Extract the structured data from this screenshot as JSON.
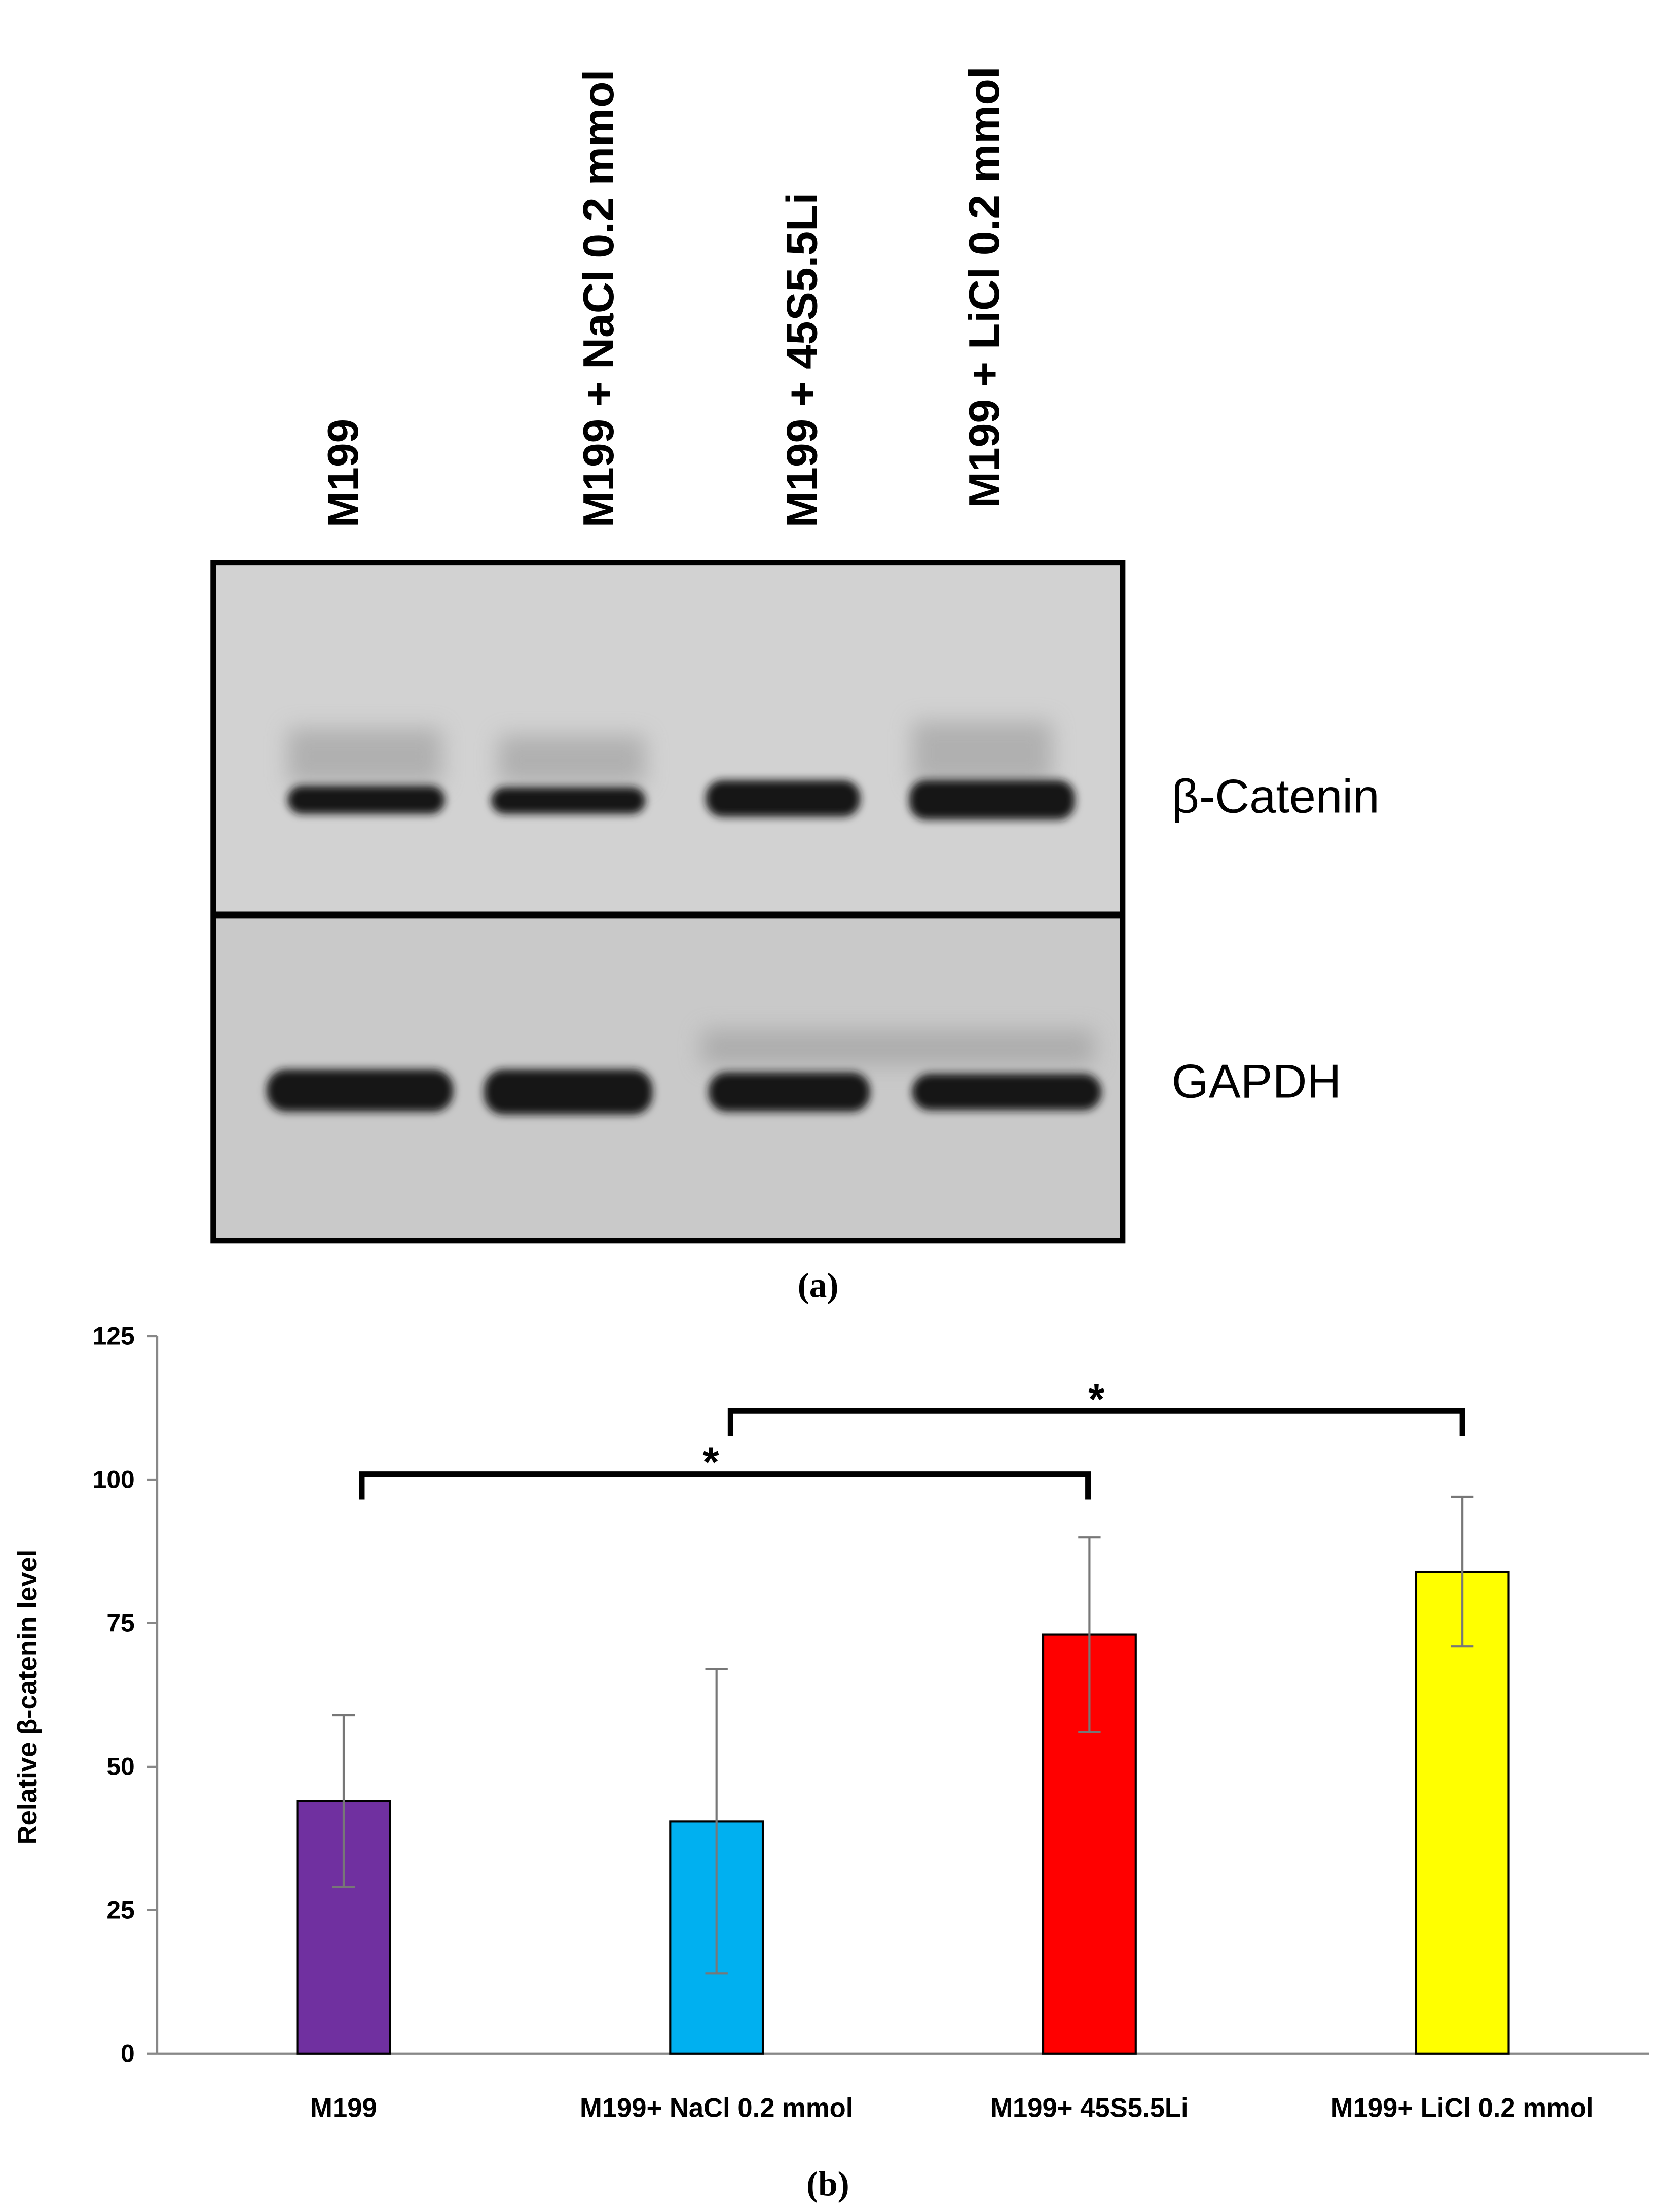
{
  "blot": {
    "lanes": [
      "M199",
      "M199 + NaCl 0.2 mmol",
      "M199 + 45S5.5Li",
      "M199 + LiCl 0.2 mmol"
    ],
    "proteins": [
      "β-Catenin",
      "GAPDH"
    ],
    "caption": "(a)"
  },
  "chart_data": {
    "type": "bar",
    "categories": [
      "M199",
      "M199+ NaCl 0.2 mmol",
      "M199+ 45S5.5Li",
      "M199+ LiCl 0.2 mmol"
    ],
    "values": [
      44,
      40.5,
      73,
      84
    ],
    "errors": [
      15,
      26.5,
      17,
      13
    ],
    "colors": [
      "#7030a0",
      "#00b0f0",
      "#ff0000",
      "#ffff00"
    ],
    "y_label": "Relative   β-catenin   level",
    "ylim": [
      0,
      125
    ],
    "yticks": [
      0,
      25,
      50,
      75,
      100,
      125
    ],
    "significance": [
      {
        "pair": [
          0,
          2
        ],
        "label": "*"
      },
      {
        "pair": [
          1,
          3
        ],
        "label": "*"
      }
    ],
    "caption": "(b)"
  }
}
